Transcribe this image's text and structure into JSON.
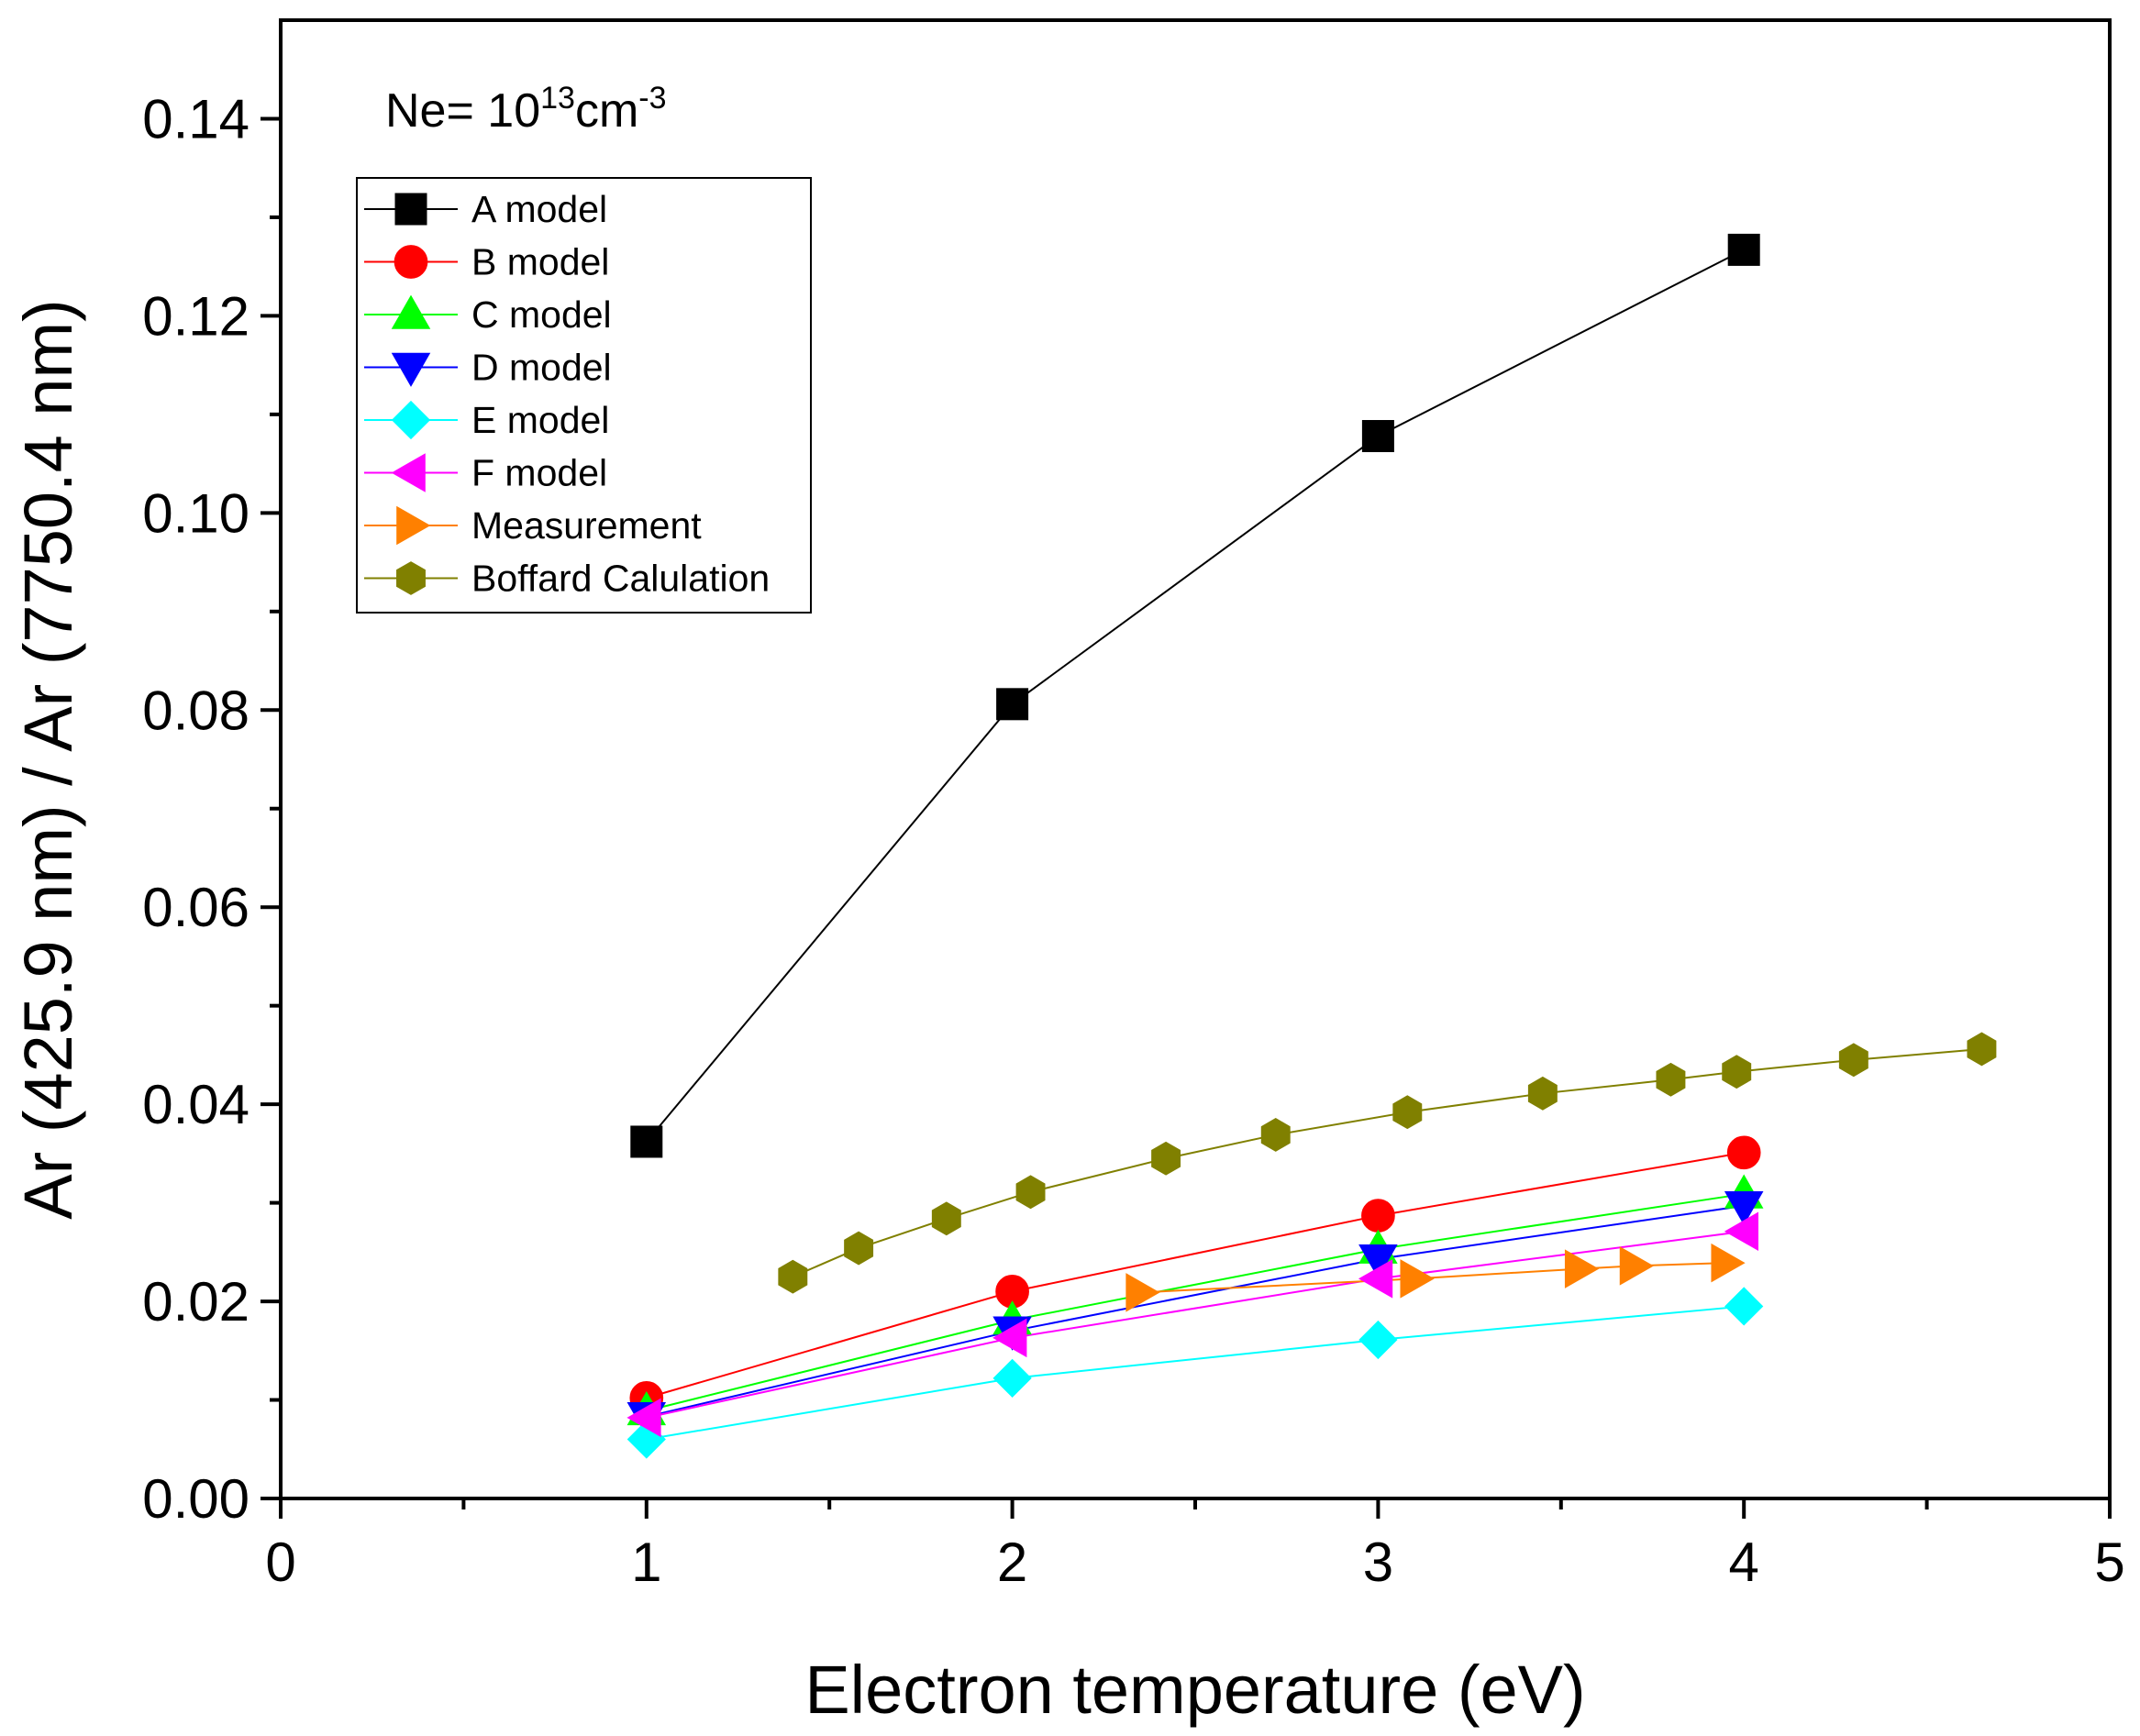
{
  "chart_data": {
    "type": "line",
    "title": "",
    "annotation": {
      "prefix": "Ne= 10",
      "exponent": "13",
      "unit": "cm",
      "unit_exponent": "-3"
    },
    "xlabel": "Electron temperature (eV)",
    "ylabel": "Ar (425.9 nm) / Ar (7750.4 nm)",
    "xlim": [
      0,
      5
    ],
    "ylim": [
      0,
      0.15
    ],
    "xticks": [
      0,
      1,
      2,
      3,
      4,
      5
    ],
    "xtick_labels": [
      "0",
      "1",
      "2",
      "3",
      "4",
      "5"
    ],
    "yticks": [
      0.0,
      0.02,
      0.04,
      0.06,
      0.08,
      0.1,
      0.12,
      0.14
    ],
    "ytick_labels": [
      "0.00",
      "0.02",
      "0.04",
      "0.06",
      "0.08",
      "0.10",
      "0.12",
      "0.14"
    ],
    "grid": false,
    "legend_position": "top-left",
    "series": [
      {
        "name": "A model",
        "color": "#000000",
        "marker": "square",
        "x": [
          1,
          2,
          3,
          4
        ],
        "y": [
          0.0362,
          0.0806,
          0.1078,
          0.1267
        ]
      },
      {
        "name": "B model",
        "color": "#ff0000",
        "marker": "circle",
        "x": [
          1,
          2,
          3,
          4
        ],
        "y": [
          0.0102,
          0.021,
          0.0287,
          0.0351
        ]
      },
      {
        "name": "C model",
        "color": "#00ff00",
        "marker": "triangle-up",
        "x": [
          1,
          2,
          3,
          4
        ],
        "y": [
          0.0089,
          0.0181,
          0.0253,
          0.0309
        ]
      },
      {
        "name": "D model",
        "color": "#0000ff",
        "marker": "triangle-down",
        "x": [
          1,
          2,
          3,
          4
        ],
        "y": [
          0.0083,
          0.017,
          0.0243,
          0.0297
        ]
      },
      {
        "name": "E model",
        "color": "#00ffff",
        "marker": "diamond",
        "x": [
          1,
          2,
          3,
          4
        ],
        "y": [
          0.006,
          0.0122,
          0.0161,
          0.0195
        ]
      },
      {
        "name": "F model",
        "color": "#ff00ff",
        "marker": "triangle-left",
        "x": [
          1,
          2,
          3,
          4
        ],
        "y": [
          0.0082,
          0.0163,
          0.0223,
          0.0271
        ]
      },
      {
        "name": "Measurement",
        "color": "#ff8000",
        "marker": "triangle-right",
        "x": [
          2.35,
          3.1,
          3.55,
          3.7,
          3.95
        ],
        "y": [
          0.0209,
          0.0223,
          0.0233,
          0.0236,
          0.0239
        ]
      },
      {
        "name": "Boffard Calulation",
        "color": "#808000",
        "marker": "hexagon",
        "x": [
          1.4,
          1.58,
          1.82,
          2.05,
          2.42,
          2.72,
          3.08,
          3.45,
          3.8,
          3.98,
          4.3,
          4.65
        ],
        "y": [
          0.0225,
          0.0254,
          0.0284,
          0.0311,
          0.0345,
          0.0369,
          0.0392,
          0.0411,
          0.0425,
          0.0433,
          0.0445,
          0.0456
        ]
      }
    ]
  }
}
